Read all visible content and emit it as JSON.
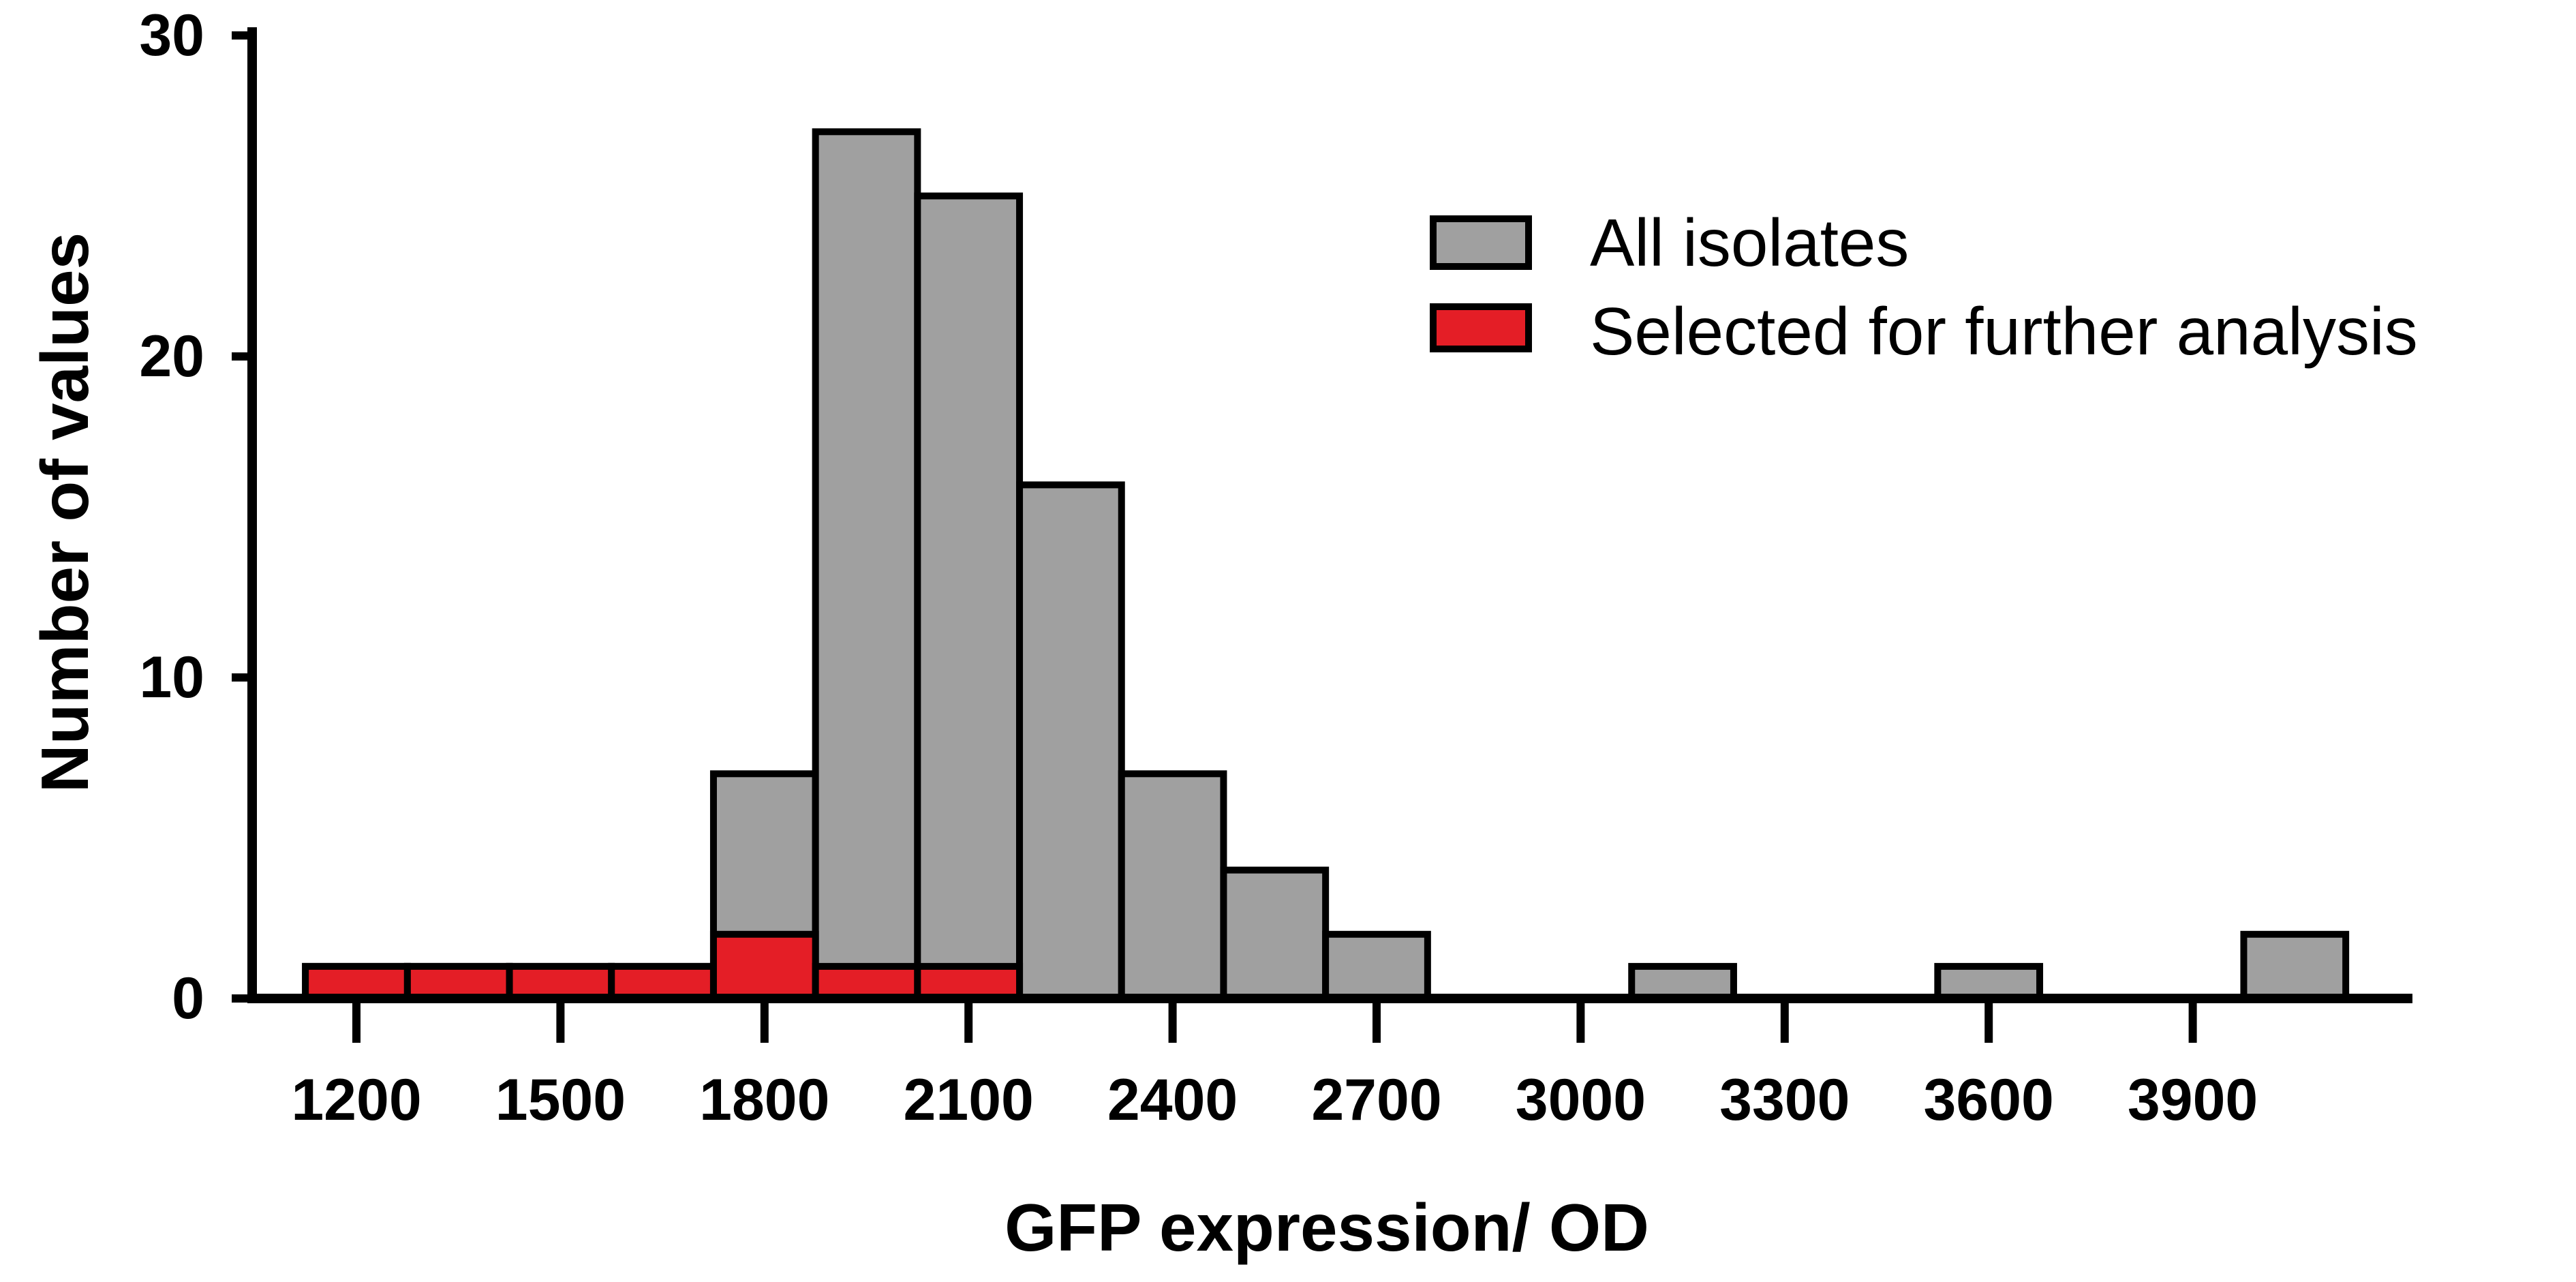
{
  "chart_data": {
    "type": "bar",
    "title": "",
    "xlabel": "GFP expression/ OD",
    "ylabel": "Number of values",
    "ylim": [
      0,
      30
    ],
    "yticks": [
      "0",
      "10",
      "20",
      "30"
    ],
    "xticks": [
      "1200",
      "1500",
      "1800",
      "2100",
      "2400",
      "2700",
      "3000",
      "3300",
      "3600",
      "3900"
    ],
    "bin_width": 150,
    "legend_position": "top-right",
    "series": [
      {
        "name": "All isolates",
        "color": "#a0a0a0",
        "bins": [
          {
            "x": 1200,
            "value": 1
          },
          {
            "x": 1350,
            "value": 1
          },
          {
            "x": 1500,
            "value": 1
          },
          {
            "x": 1650,
            "value": 1
          },
          {
            "x": 1800,
            "value": 7
          },
          {
            "x": 1950,
            "value": 27
          },
          {
            "x": 2100,
            "value": 25
          },
          {
            "x": 2250,
            "value": 16
          },
          {
            "x": 2400,
            "value": 7
          },
          {
            "x": 2550,
            "value": 4
          },
          {
            "x": 2700,
            "value": 2
          },
          {
            "x": 3150,
            "value": 1
          },
          {
            "x": 3600,
            "value": 1
          },
          {
            "x": 4050,
            "value": 2
          }
        ]
      },
      {
        "name": "Selected for further analysis",
        "color": "#e41e26",
        "bins": [
          {
            "x": 1200,
            "value": 1
          },
          {
            "x": 1350,
            "value": 1
          },
          {
            "x": 1500,
            "value": 1
          },
          {
            "x": 1650,
            "value": 1
          },
          {
            "x": 1800,
            "value": 2
          },
          {
            "x": 1950,
            "value": 1
          },
          {
            "x": 2100,
            "value": 1
          }
        ]
      }
    ]
  }
}
